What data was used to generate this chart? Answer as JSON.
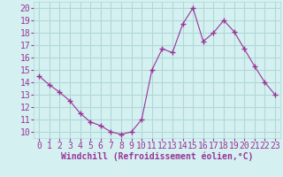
{
  "x": [
    0,
    1,
    2,
    3,
    4,
    5,
    6,
    7,
    8,
    9,
    10,
    11,
    12,
    13,
    14,
    15,
    16,
    17,
    18,
    19,
    20,
    21,
    22,
    23
  ],
  "y": [
    14.5,
    13.8,
    13.2,
    12.5,
    11.5,
    10.8,
    10.5,
    10.0,
    9.8,
    10.0,
    11.0,
    15.0,
    16.7,
    16.4,
    18.7,
    20.0,
    17.3,
    18.0,
    19.0,
    18.1,
    16.7,
    15.3,
    14.0,
    13.0
  ],
  "line_color": "#993399",
  "marker": "+",
  "marker_size": 4,
  "bg_color": "#d4f0f0",
  "grid_color": "#b0d8d8",
  "xlabel": "Windchill (Refroidissement éolien,°C)",
  "xlabel_color": "#993399",
  "xlabel_fontsize": 7,
  "tick_label_color": "#993399",
  "tick_fontsize": 7,
  "ylim": [
    9.5,
    20.5
  ],
  "yticks": [
    10,
    11,
    12,
    13,
    14,
    15,
    16,
    17,
    18,
    19,
    20
  ],
  "xticks": [
    0,
    1,
    2,
    3,
    4,
    5,
    6,
    7,
    8,
    9,
    10,
    11,
    12,
    13,
    14,
    15,
    16,
    17,
    18,
    19,
    20,
    21,
    22,
    23
  ],
  "xtick_labels": [
    "0",
    "1",
    "2",
    "3",
    "4",
    "5",
    "6",
    "7",
    "8",
    "9",
    "10",
    "11",
    "12",
    "13",
    "14",
    "15",
    "16",
    "17",
    "18",
    "19",
    "20",
    "21",
    "22",
    "23"
  ],
  "xlim": [
    -0.5,
    23.5
  ]
}
